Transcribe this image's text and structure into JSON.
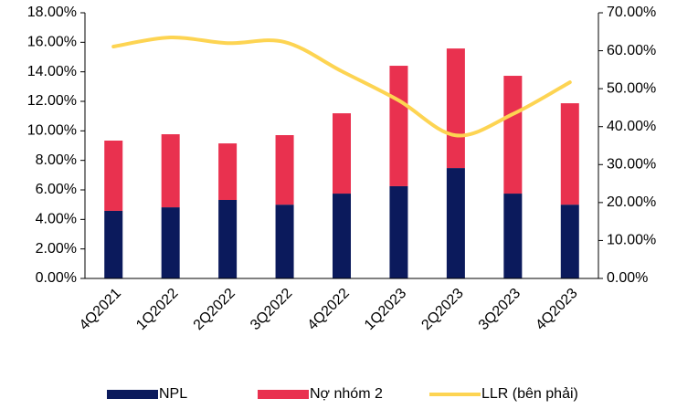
{
  "chart_data": {
    "type": "bar",
    "categories": [
      "4Q2021",
      "1Q2022",
      "2Q2022",
      "3Q2022",
      "4Q2022",
      "1Q2023",
      "2Q2023",
      "3Q2023",
      "4Q2023"
    ],
    "stacked": true,
    "series": [
      {
        "name": "NPL",
        "color": "#0b1a5c",
        "values": [
          4.58,
          4.82,
          5.32,
          5.0,
          5.75,
          6.25,
          7.48,
          5.75,
          5.0
        ]
      },
      {
        "name": "Nợ nhóm 2",
        "color": "#e9314f",
        "values": [
          4.76,
          4.95,
          3.83,
          4.71,
          5.44,
          8.16,
          8.1,
          7.98,
          6.87
        ]
      },
      {
        "name": "LLR (bên phải)",
        "color": "#fdd452",
        "type": "line",
        "axis": "y2",
        "values": [
          61.1,
          63.5,
          62.0,
          62.3,
          54.6,
          46.9,
          37.7,
          43.3,
          51.7
        ]
      }
    ],
    "ylim": [
      0,
      18
    ],
    "yticks": [
      {
        "value": 0,
        "label": "0.00%"
      },
      {
        "value": 2,
        "label": "2.00%"
      },
      {
        "value": 4,
        "label": "4.00%"
      },
      {
        "value": 6,
        "label": "6.00%"
      },
      {
        "value": 8,
        "label": "8.00%"
      },
      {
        "value": 10,
        "label": "10.00%"
      },
      {
        "value": 12,
        "label": "12.00%"
      },
      {
        "value": 14,
        "label": "14.00%"
      },
      {
        "value": 16,
        "label": "16.00%"
      },
      {
        "value": 18,
        "label": "18.00%"
      }
    ],
    "y2lim": [
      0,
      70
    ],
    "y2ticks": [
      {
        "value": 0,
        "label": "0.00%"
      },
      {
        "value": 10,
        "label": "10.00%"
      },
      {
        "value": 20,
        "label": "20.00%"
      },
      {
        "value": 30,
        "label": "30.00%"
      },
      {
        "value": 40,
        "label": "40.00%"
      },
      {
        "value": 50,
        "label": "50.00%"
      },
      {
        "value": 60,
        "label": "60.00%"
      },
      {
        "value": 70,
        "label": "70.00%"
      }
    ],
    "legend": "bottom"
  }
}
